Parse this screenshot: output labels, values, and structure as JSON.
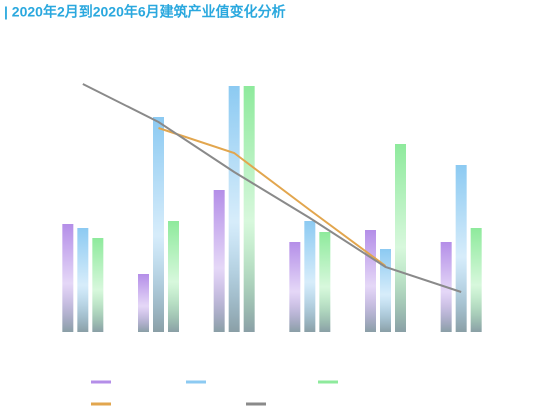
{
  "chart_data": {
    "type": "bar-line",
    "title": "| 2020年2月到2020年6月建筑产业值变化分析",
    "categories": [
      null,
      null,
      null,
      null,
      null,
      null
    ],
    "ylim": [
      0,
      260
    ],
    "series": [
      {
        "type": "bar",
        "color": "#b48ee8",
        "values": [
          108,
          58,
          142,
          90,
          102,
          90
        ]
      },
      {
        "type": "bar",
        "color": "#8ccaf2",
        "values": [
          104,
          215,
          246,
          111,
          83,
          167
        ]
      },
      {
        "type": "bar",
        "color": "#8eea9c",
        "values": [
          94,
          111,
          246,
          100,
          188,
          104
        ]
      },
      {
        "type": "line",
        "color": "#e2a64e",
        "values": [
          null,
          204,
          179,
          122,
          66,
          null
        ]
      },
      {
        "type": "line",
        "color": "#8a8a8a",
        "values": [
          248,
          210,
          160,
          114,
          65,
          40
        ]
      }
    ]
  }
}
